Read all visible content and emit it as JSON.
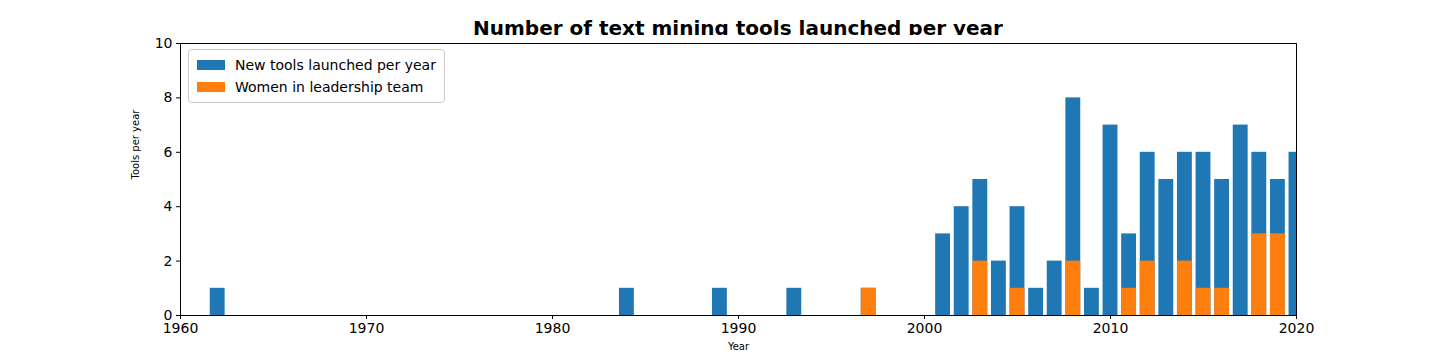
{
  "chart_data": {
    "type": "bar",
    "title": "Number of text mining tools launched per year",
    "x_label": "Year",
    "y_label": "Tools per year",
    "x": [
      1962,
      1984,
      1989,
      1993,
      1997,
      2001,
      2002,
      2003,
      2004,
      2005,
      2006,
      2007,
      2008,
      2009,
      2010,
      2011,
      2012,
      2013,
      2014,
      2015,
      2016,
      2017,
      2018,
      2019,
      2020
    ],
    "series": [
      {
        "name": "New tools launched per year",
        "color": "#1f77b4",
        "values": [
          1,
          1,
          1,
          1,
          1,
          3,
          4,
          5,
          2,
          4,
          1,
          2,
          8,
          1,
          7,
          3,
          6,
          5,
          6,
          6,
          5,
          7,
          6,
          5,
          6
        ]
      },
      {
        "name": "Women in leadership team",
        "color": "#ff7f0e",
        "values": [
          0,
          0,
          0,
          0,
          1,
          0,
          0,
          2,
          0,
          1,
          0,
          0,
          2,
          0,
          0,
          1,
          2,
          0,
          2,
          1,
          1,
          0,
          3,
          3,
          0
        ]
      }
    ],
    "xlim": [
      1960,
      2020
    ],
    "xticks": [
      1960,
      1970,
      1980,
      1990,
      2000,
      2010,
      2020
    ],
    "ylim": [
      0,
      10
    ],
    "yticks": [
      0,
      2,
      4,
      6,
      8,
      10
    ],
    "legend": "upper left",
    "grid": false,
    "stacked": false
  }
}
